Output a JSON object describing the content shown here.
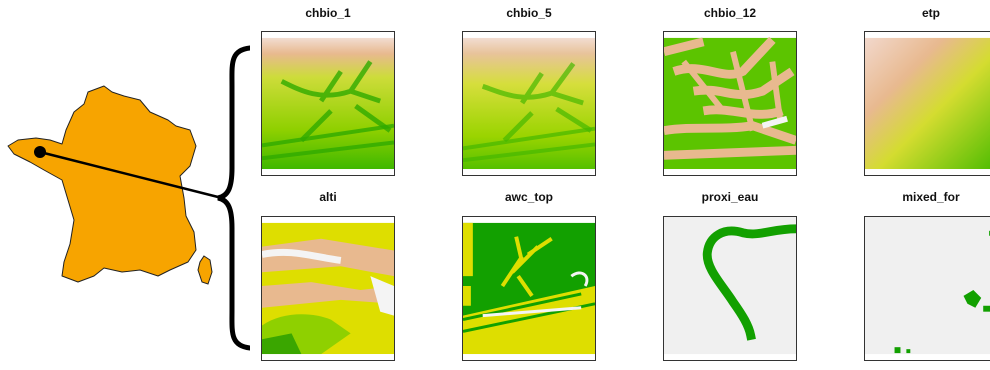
{
  "panels": [
    {
      "id": "p1",
      "title": "chbio_1"
    },
    {
      "id": "p2",
      "title": "chbio_5"
    },
    {
      "id": "p3",
      "title": "chbio_12"
    },
    {
      "id": "p4",
      "title": "etp"
    },
    {
      "id": "p5",
      "title": "alti"
    },
    {
      "id": "p6",
      "title": "awc_top"
    },
    {
      "id": "p7",
      "title": "proxi_eau"
    },
    {
      "id": "p8",
      "title": "mixed_for"
    }
  ],
  "colors": {
    "france_fill": "#f7a400",
    "raster_white": "#f2f2f2",
    "raster_tan": "#e8b98f",
    "raster_yellow": "#dede00",
    "raster_green": "#0fa000"
  }
}
